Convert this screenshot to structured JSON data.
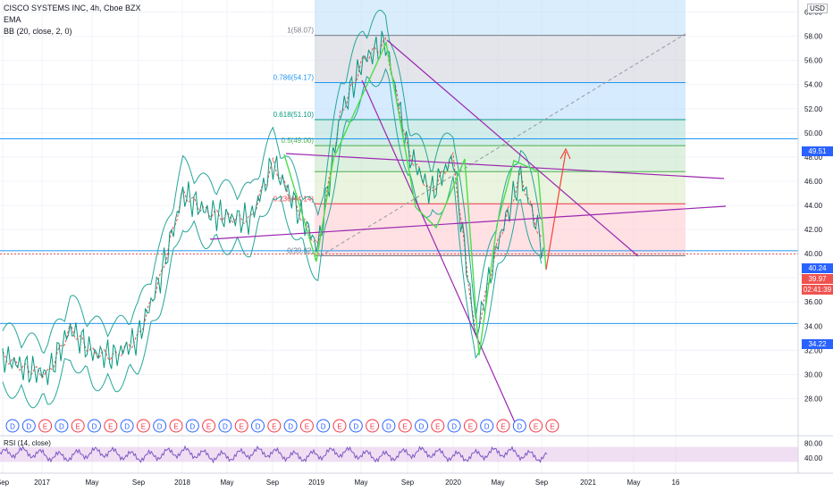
{
  "header": {
    "symbol": "CISCO SYSTEMS INC, 4h, Cboe BZX",
    "ema": "EMA",
    "bb": "BB (20, close, 2, 0)"
  },
  "currency": "USD",
  "rsi": {
    "label": "RSI (14, close)",
    "ticks": [
      "80.00",
      "40.00"
    ],
    "range": [
      0,
      100
    ],
    "band": [
      30,
      70
    ]
  },
  "price_badges": [
    {
      "value": "49.51",
      "color": "#2962ff"
    },
    {
      "value": "40.24",
      "color": "#2962ff"
    },
    {
      "value": "39.97",
      "color": "#ef5350"
    },
    {
      "value": "02:41:39",
      "color": "#ef5350"
    },
    {
      "value": "34.22",
      "color": "#2962ff"
    }
  ],
  "fib": {
    "levels": [
      {
        "ratio": 1,
        "label": "1(58.07)",
        "color": "#787b86"
      },
      {
        "ratio": 0.786,
        "label": "0.786(54.17)",
        "color": "#2196f3"
      },
      {
        "ratio": 0.618,
        "label": "0.618(51.10)",
        "color": "#089981"
      },
      {
        "ratio": 0.5,
        "label": "0.5(49.00)",
        "color": "#4caf50"
      },
      {
        "ratio": 0.382,
        "label": "",
        "color": "#4caf50"
      },
      {
        "ratio": 0.236,
        "label": "0.236(44.14)",
        "color": "#f23645"
      },
      {
        "ratio": 0,
        "label": "0(39.82)",
        "color": "#787b86"
      }
    ]
  },
  "events": [
    "D",
    "D",
    "E",
    "D",
    "E",
    "D",
    "E",
    "D",
    "E",
    "D",
    "E",
    "D",
    "E",
    "D",
    "E",
    "D",
    "E",
    "D",
    "E",
    "D",
    "E",
    "D",
    "E",
    "D",
    "E",
    "D",
    "E",
    "D",
    "E",
    "D",
    "E",
    "D",
    "E",
    "E"
  ],
  "chart_data": {
    "type": "line",
    "title": "CISCO SYSTEMS INC, 4h, Cboe BZX",
    "x_ticks": [
      "Sep",
      "2017",
      "May",
      "Sep",
      "2018",
      "May",
      "Sep",
      "2019",
      "May",
      "Sep",
      "2020",
      "May",
      "Sep",
      "2021",
      "May",
      "16"
    ],
    "y_ticks": [
      "60.00",
      "58.00",
      "56.00",
      "54.00",
      "52.00",
      "50.00",
      "48.00",
      "46.00",
      "44.00",
      "42.00",
      "40.00",
      "38.00",
      "36.00",
      "34.00",
      "32.00",
      "30.00",
      "28.00"
    ],
    "ylim": [
      27,
      61
    ],
    "grid": true,
    "series": [
      {
        "x": [
          "Sep 2016",
          "Nov 2016",
          "Jan 2017",
          "Mar 2017",
          "May 2017",
          "Jul 2017",
          "Sep 2017",
          "Nov 2017",
          "Jan 2018",
          "Mar 2018",
          "May 2018",
          "Jul 2018",
          "Sep 2018",
          "Nov 2018",
          "Jan 2019",
          "Mar 2019",
          "May 2019",
          "Jul 2019",
          "Sep 2019",
          "Nov 2019",
          "Jan 2020",
          "Mar 2020",
          "May 2020",
          "Jul 2020",
          "Sep 2020"
        ],
        "values": [
          31.5,
          30.5,
          30.0,
          33.8,
          31.8,
          31.5,
          33.0,
          38.0,
          45.0,
          43.5,
          43.0,
          42.8,
          47.5,
          44.0,
          40.5,
          51.5,
          56.0,
          57.5,
          48.5,
          45.0,
          48.0,
          33.0,
          41.0,
          46.5,
          40.5
        ]
      }
    ],
    "annotations": [
      "49.51",
      "40.24",
      "39.97",
      "34.22"
    ]
  }
}
